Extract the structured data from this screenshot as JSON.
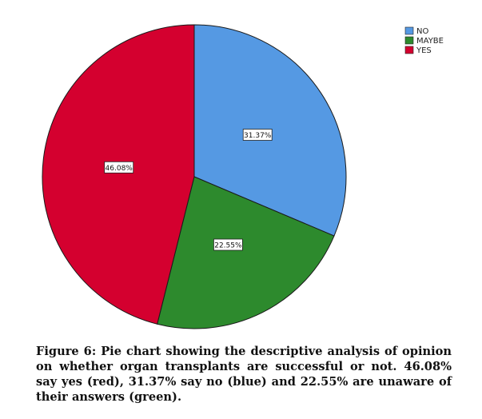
{
  "chart_data": {
    "type": "pie",
    "slices": [
      {
        "label": "NO",
        "value": 31.37,
        "value_label": "31.37%",
        "color": "#5599e3"
      },
      {
        "label": "MAYBE",
        "value": 22.55,
        "value_label": "22.55%",
        "color": "#2d8a2d"
      },
      {
        "label": "YES",
        "value": 46.08,
        "value_label": "46.08%",
        "color": "#d4002f"
      }
    ],
    "legend_position": "top-right"
  },
  "caption": "Figure 6: Pie chart showing the descriptive analysis of opinion on whether organ transplants are successful or not. 46.08% say yes (red), 31.37% say no (blue) and 22.55% are unaware of their answers (green)."
}
